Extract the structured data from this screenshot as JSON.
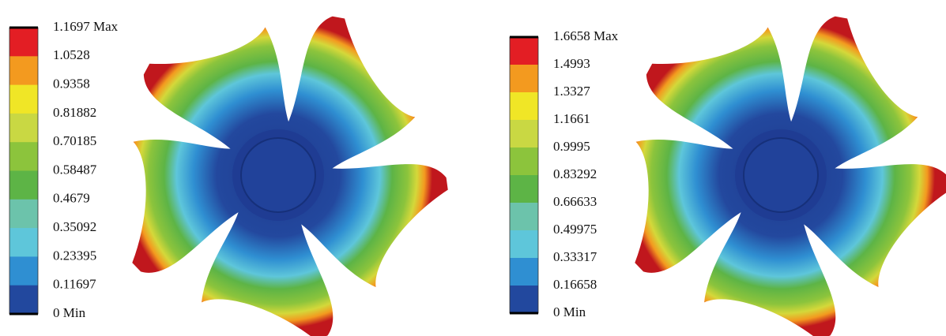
{
  "panels": [
    {
      "legend": {
        "labels": [
          "1.1697 Max",
          "1.0528",
          "0.9358",
          "0.81882",
          "0.70185",
          "0.58487",
          "0.4679",
          "0.35092",
          "0.23395",
          "0.11697",
          "0 Min"
        ],
        "colors": [
          "#e31e24",
          "#f39a1f",
          "#f0e626",
          "#c9d843",
          "#8cc43c",
          "#5db446",
          "#6cc3ab",
          "#5ec6da",
          "#2f8fd2",
          "#22489e"
        ]
      }
    },
    {
      "legend": {
        "labels": [
          "1.6658 Max",
          "1.4993",
          "1.3327",
          "1.1661",
          "0.9995",
          "0.83292",
          "0.66633",
          "0.49975",
          "0.33317",
          "0.16658",
          "0 Min"
        ],
        "colors": [
          "#e31e24",
          "#f39a1f",
          "#f0e626",
          "#c9d843",
          "#8cc43c",
          "#5db446",
          "#6cc3ab",
          "#5ec6da",
          "#2f8fd2",
          "#22489e"
        ]
      }
    }
  ]
}
